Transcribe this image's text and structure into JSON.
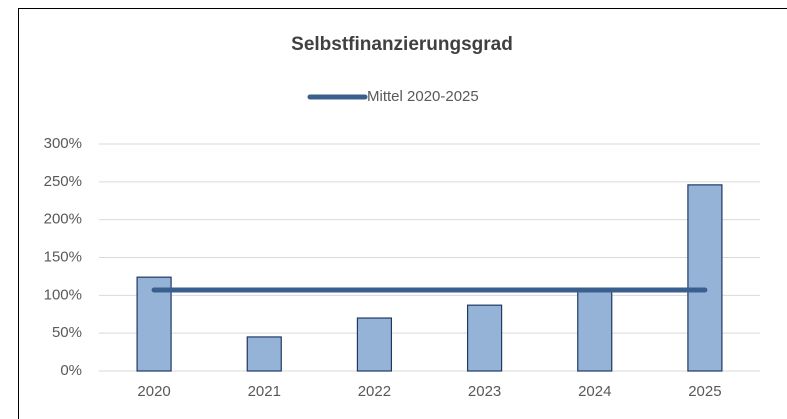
{
  "chart_data": {
    "type": "bar",
    "title": "Selbstfinanzierungsgrad",
    "categories": [
      "2020",
      "2021",
      "2022",
      "2023",
      "2024",
      "2025"
    ],
    "series": [
      {
        "color": "#95b3d7",
        "values": [
          124,
          45,
          70,
          87,
          107,
          246
        ]
      },
      {
        "name": "Mittel 2020-2025",
        "type": "line",
        "color": "#3a5f8f",
        "values": [
          107,
          107,
          107,
          107,
          107,
          107
        ]
      }
    ],
    "ylim": [
      0,
      300
    ],
    "yticks": [
      {
        "value": 0,
        "label": "0%"
      },
      {
        "value": 50,
        "label": "50%"
      },
      {
        "value": 100,
        "label": "100%"
      },
      {
        "value": 150,
        "label": "150%"
      },
      {
        "value": 200,
        "label": "200%"
      },
      {
        "value": 250,
        "label": "250%"
      },
      {
        "value": 300,
        "label": "300%"
      }
    ],
    "grid": true,
    "legend": "top"
  }
}
